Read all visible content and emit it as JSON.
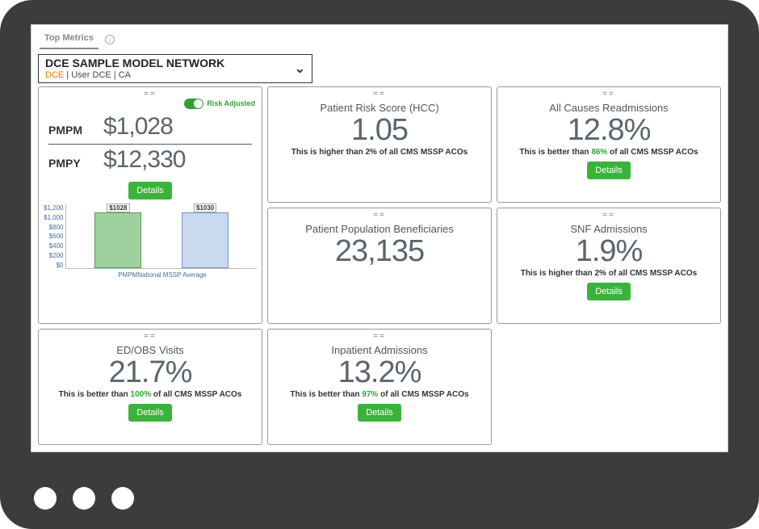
{
  "tab": {
    "label": "Top Metrics"
  },
  "selector": {
    "title": "DCE SAMPLE MODEL NETWORK",
    "accent": "DCE",
    "sep": "  |  ",
    "user": "User DCE",
    "region": "CA"
  },
  "colors": {
    "accent_green": "#2fa52f",
    "button_green": "#3bb33b",
    "text_muted": "#5a6570",
    "bar1_fill": "#9fd19f",
    "bar1_border": "#4f9f4f",
    "bar2_fill": "#c9d9ef",
    "bar2_border": "#7a93c4"
  },
  "pmpm_card": {
    "risk_label": "Risk Adjusted",
    "rows": [
      {
        "label": "PMPM",
        "value": "$1,028"
      },
      {
        "label": "PMPY",
        "value": "$12,330"
      }
    ],
    "details_label": "Details",
    "chart": {
      "type": "bar",
      "ylim": [
        0,
        1200
      ],
      "ytick_step": 200,
      "yticks": [
        "$1,200",
        "$1,000",
        "$800",
        "$600",
        "$400",
        "$200",
        "$0"
      ],
      "bars": [
        {
          "label": "PMPM",
          "value": 1028,
          "tag": "$1028",
          "fill": "#9fd19f",
          "border": "#4f9f4f"
        },
        {
          "label": "National MSSP Average",
          "value": 1030,
          "tag": "$1030",
          "fill": "#c9d9ef",
          "border": "#7a93c4"
        }
      ]
    }
  },
  "cards": {
    "risk_score": {
      "title": "Patient Risk Score (HCC)",
      "value": "1.05",
      "compare_prefix": "This is higher than ",
      "compare_pct": "2%",
      "compare_suffix": " of all CMS MSSP ACOs",
      "has_button": false
    },
    "readmissions": {
      "title": "All Causes Readmissions",
      "value": "12.8%",
      "compare_prefix": "This is better than ",
      "compare_pct": "86%",
      "compare_suffix": " of all CMS MSSP ACOs",
      "has_button": true,
      "button": "Details"
    },
    "population": {
      "title": "Patient Population Beneficiaries",
      "value": "23,135",
      "has_button": false
    },
    "snf": {
      "title": "SNF Admissions",
      "value": "1.9%",
      "compare_prefix": "This is higher than ",
      "compare_pct": "2%",
      "compare_suffix": " of all CMS MSSP ACOs",
      "has_button": true,
      "button": "Details"
    },
    "edobs": {
      "title": "ED/OBS Visits",
      "value": "21.7%",
      "compare_prefix": "This is better than ",
      "compare_pct": "100%",
      "compare_suffix": " of all CMS MSSP ACOs",
      "has_button": true,
      "button": "Details"
    },
    "inpatient": {
      "title": "Inpatient Admissions",
      "value": "13.2%",
      "compare_prefix": "This is better than ",
      "compare_pct": "97%",
      "compare_suffix": " of all CMS MSSP ACOs",
      "has_button": true,
      "button": "Details"
    }
  }
}
